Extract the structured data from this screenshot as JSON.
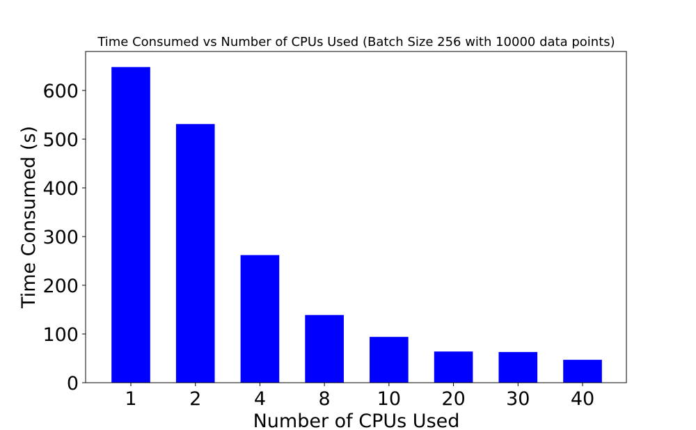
{
  "chart_data": {
    "type": "bar",
    "title": "Time Consumed vs Number of CPUs Used (Batch Size 256 with 10000 data points)",
    "xlabel": "Number of CPUs Used",
    "ylabel": "Time Consumed (s)",
    "categories": [
      "1",
      "2",
      "4",
      "8",
      "10",
      "20",
      "30",
      "40"
    ],
    "values": [
      648,
      531,
      262,
      139,
      94,
      64,
      63,
      47
    ],
    "ylim": [
      0,
      680
    ],
    "yticks": [
      0,
      100,
      200,
      300,
      400,
      500,
      600
    ],
    "bar_color": "#0000ff",
    "grid": false
  }
}
